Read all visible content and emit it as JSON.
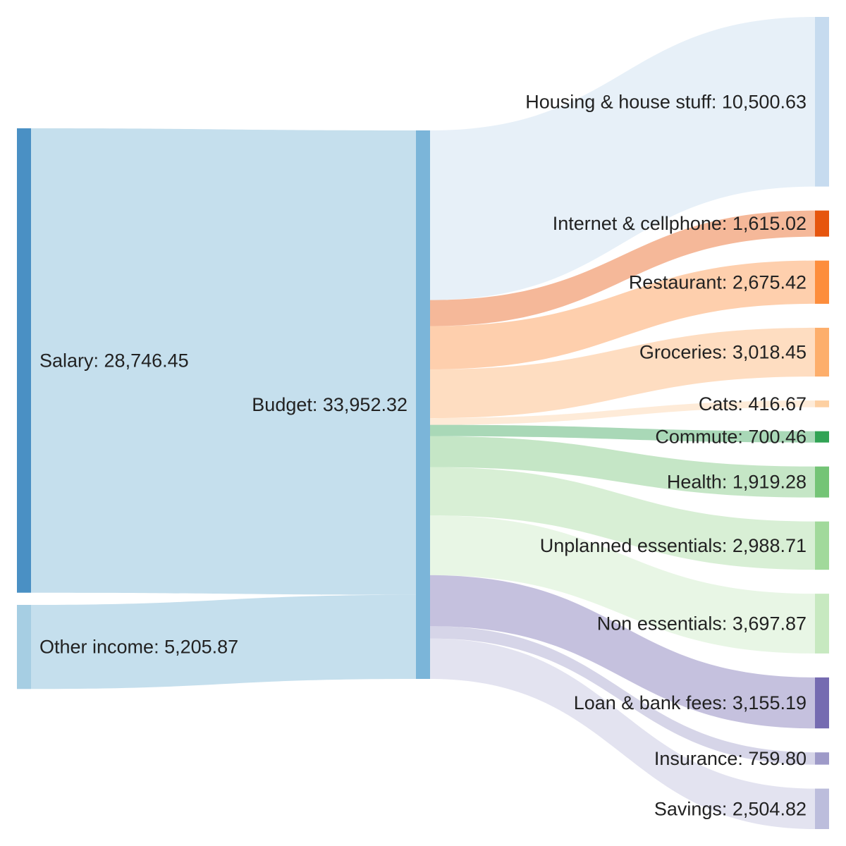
{
  "chart_data": {
    "type": "sankey",
    "title": "",
    "value_format": "en-US, 2 decimals",
    "sources": [
      {
        "id": "salary",
        "label": "Salary",
        "value": 28746.45,
        "color": "#4a90c4"
      },
      {
        "id": "other_income",
        "label": "Other income",
        "value": 5205.87,
        "color": "#a6cee3"
      }
    ],
    "hub": {
      "id": "budget",
      "label": "Budget",
      "value": 33952.32,
      "color": "#7bb5d9"
    },
    "targets": [
      {
        "id": "housing",
        "label": "Housing & house stuff",
        "value": 10500.63,
        "color": "#c6dbef"
      },
      {
        "id": "internet",
        "label": "Internet & cellphone",
        "value": 1615.02,
        "color": "#e6550d"
      },
      {
        "id": "restaurant",
        "label": "Restaurant",
        "value": 2675.42,
        "color": "#fd8d3c"
      },
      {
        "id": "groceries",
        "label": "Groceries",
        "value": 3018.45,
        "color": "#fdae6b"
      },
      {
        "id": "cats",
        "label": "Cats",
        "value": 416.67,
        "color": "#fdd0a2"
      },
      {
        "id": "commute",
        "label": "Commute",
        "value": 700.46,
        "color": "#31a354"
      },
      {
        "id": "health",
        "label": "Health",
        "value": 1919.28,
        "color": "#74c476"
      },
      {
        "id": "unplanned",
        "label": "Unplanned essentials",
        "value": 2988.71,
        "color": "#a1d99b"
      },
      {
        "id": "non_essentials",
        "label": "Non essentials",
        "value": 3697.87,
        "color": "#c7e9c0"
      },
      {
        "id": "loan",
        "label": "Loan & bank fees",
        "value": 3155.19,
        "color": "#756bb1"
      },
      {
        "id": "insurance",
        "label": "Insurance",
        "value": 759.8,
        "color": "#9e9ac8"
      },
      {
        "id": "savings",
        "label": "Savings",
        "value": 2504.82,
        "color": "#bcbddc"
      }
    ],
    "links": [
      {
        "source": "salary",
        "target": "budget",
        "value": 28746.45
      },
      {
        "source": "other_income",
        "target": "budget",
        "value": 5205.87
      },
      {
        "source": "budget",
        "target": "housing",
        "value": 10500.63
      },
      {
        "source": "budget",
        "target": "internet",
        "value": 1615.02
      },
      {
        "source": "budget",
        "target": "restaurant",
        "value": 2675.42
      },
      {
        "source": "budget",
        "target": "groceries",
        "value": 3018.45
      },
      {
        "source": "budget",
        "target": "cats",
        "value": 416.67
      },
      {
        "source": "budget",
        "target": "commute",
        "value": 700.46
      },
      {
        "source": "budget",
        "target": "health",
        "value": 1919.28
      },
      {
        "source": "budget",
        "target": "unplanned",
        "value": 2988.71
      },
      {
        "source": "budget",
        "target": "non_essentials",
        "value": 3697.87
      },
      {
        "source": "budget",
        "target": "loan",
        "value": 3155.19
      },
      {
        "source": "budget",
        "target": "insurance",
        "value": 759.8
      },
      {
        "source": "budget",
        "target": "savings",
        "value": 2504.82
      }
    ]
  }
}
